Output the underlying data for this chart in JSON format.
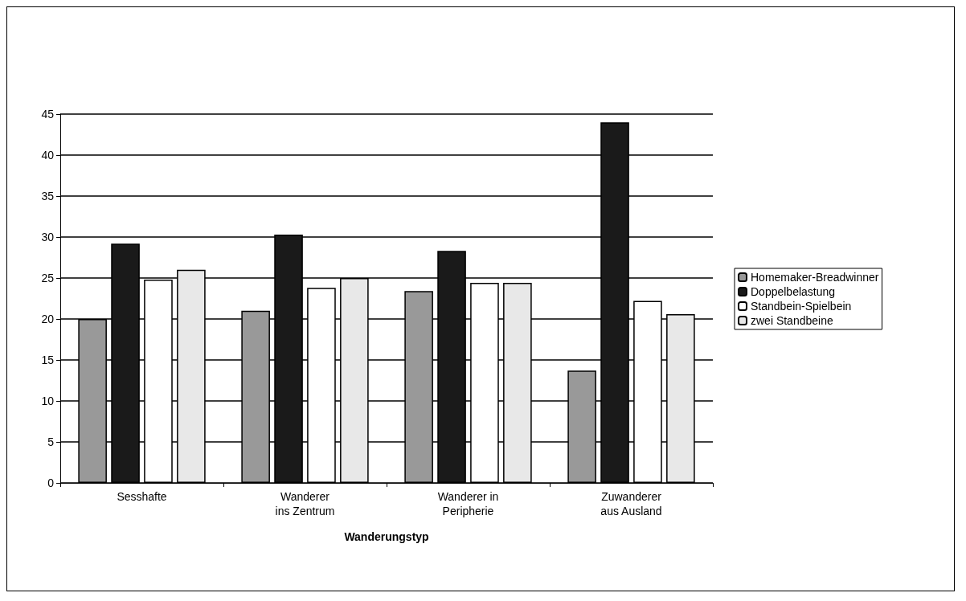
{
  "chart_data": {
    "type": "bar",
    "xlabel": "Wanderungstyp",
    "categories": [
      "Sesshafte",
      "Wanderer\nins Zentrum",
      "Wanderer in\nPeripherie",
      "Zuwanderer\naus Ausland"
    ],
    "series": [
      {
        "name": "Homemaker-Breadwinner",
        "color": "#999999",
        "values": [
          20,
          21,
          23.4,
          13.7
        ]
      },
      {
        "name": "Doppelbelastung",
        "color": "#1a1a1a",
        "values": [
          29.2,
          30.3,
          28.3,
          44
        ]
      },
      {
        "name": "Standbein-Spielbein",
        "color": "#ffffff",
        "values": [
          24.8,
          23.8,
          24.4,
          22.2
        ]
      },
      {
        "name": "zwei Standbeine",
        "color": "#e8e8e8",
        "values": [
          26,
          25,
          24.4,
          20.6
        ]
      }
    ],
    "ylim": [
      0,
      45
    ],
    "yticks": [
      0,
      5,
      10,
      15,
      20,
      25,
      30,
      35,
      40,
      45
    ],
    "grid": "y",
    "legend": "right"
  }
}
